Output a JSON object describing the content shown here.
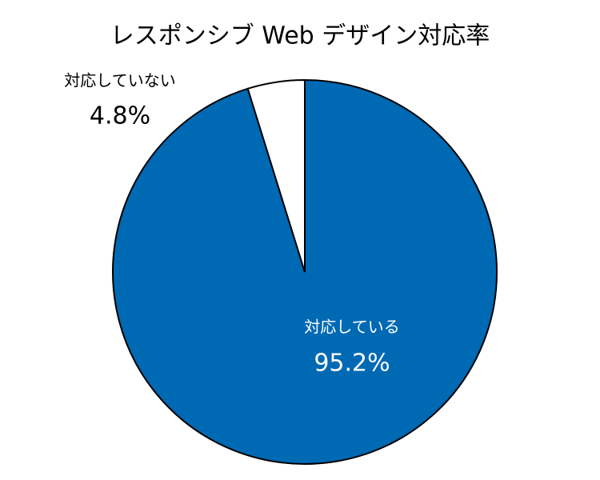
{
  "chart_data": {
    "type": "pie",
    "title": "レスポンシブ Web デザイン対応率",
    "categories": [
      "対応している",
      "対応していない"
    ],
    "values": [
      95.2,
      4.8
    ],
    "value_labels": [
      "95.2%",
      "4.8%"
    ],
    "colors": [
      "#0069b4",
      "#ffffff"
    ],
    "label_colors": [
      "#ffffff",
      "#000000"
    ]
  }
}
